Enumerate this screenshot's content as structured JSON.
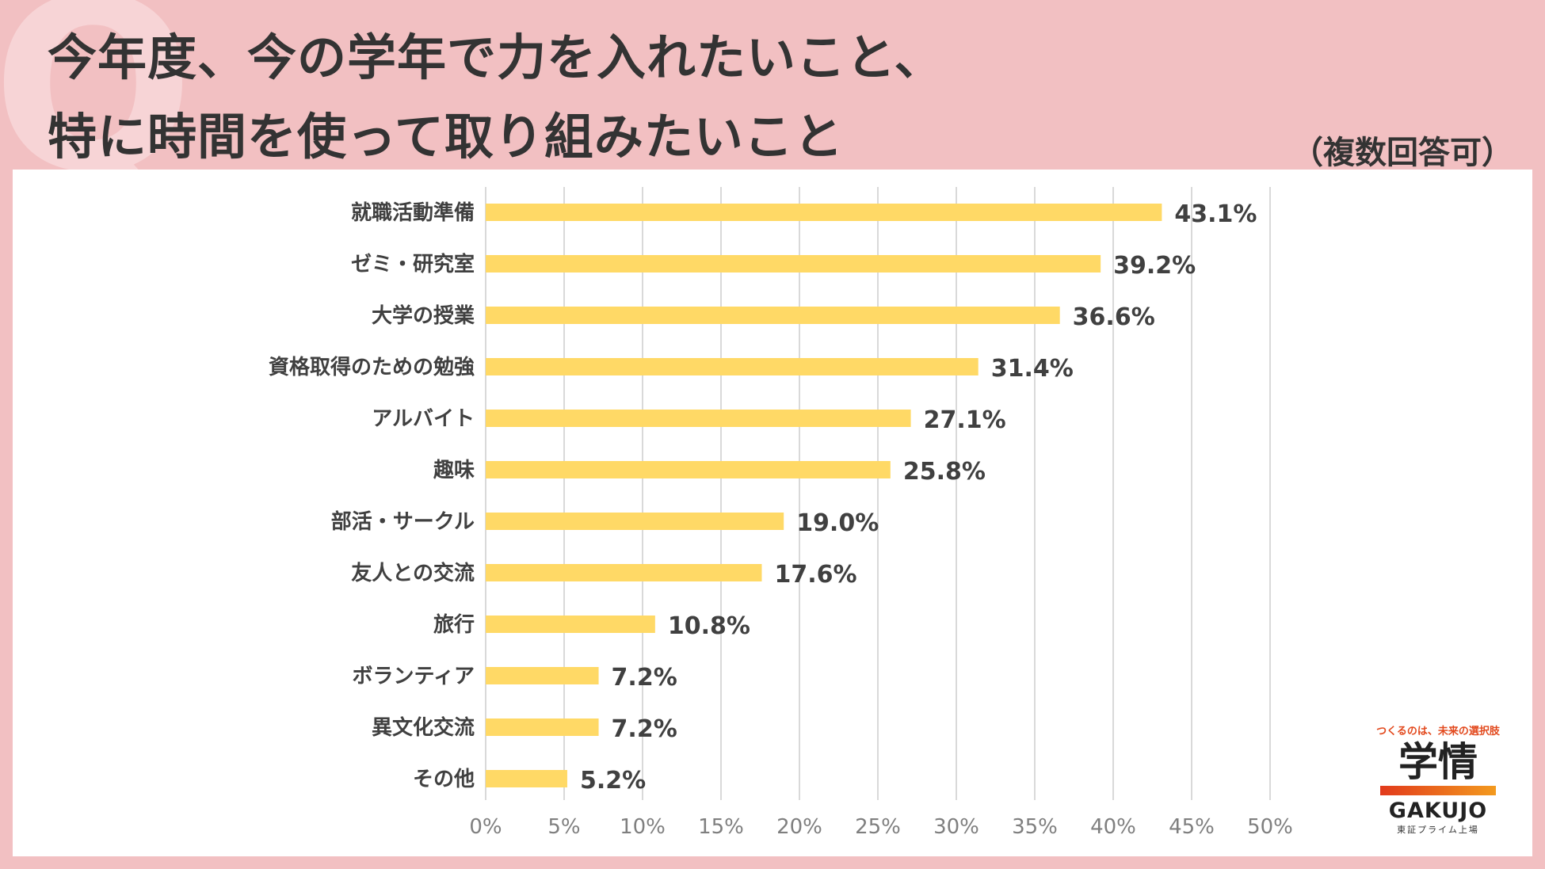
{
  "header": {
    "title_line1": "今年度、今の学年で力を入れたいこと、",
    "title_line2": "特に時間を使って取り組みたいこと",
    "note": "（複数回答可）"
  },
  "chart_data": {
    "type": "bar",
    "orientation": "horizontal",
    "title": "今年度、今の学年で力を入れたいこと、特に時間を使って取り組みたいこと",
    "categories": [
      "就職活動準備",
      "ゼミ・研究室",
      "大学の授業",
      "資格取得のための勉強",
      "アルバイト",
      "趣味",
      "部活・サークル",
      "友人との交流",
      "旅行",
      "ボランティア",
      "異文化交流",
      "その他"
    ],
    "values": [
      43.1,
      39.2,
      36.6,
      31.4,
      27.1,
      25.8,
      19.0,
      17.6,
      10.8,
      7.2,
      7.2,
      5.2
    ],
    "value_labels": [
      "43.1%",
      "39.2%",
      "36.6%",
      "31.4%",
      "27.1%",
      "25.8%",
      "19.0%",
      "17.6%",
      "10.8%",
      "7.2%",
      "7.2%",
      "5.2%"
    ],
    "xlim": [
      0,
      50
    ],
    "xticks": [
      0,
      5,
      10,
      15,
      20,
      25,
      30,
      35,
      40,
      45,
      50
    ],
    "xtick_labels": [
      "0%",
      "5%",
      "10%",
      "15%",
      "20%",
      "25%",
      "30%",
      "35%",
      "40%",
      "45%",
      "50%"
    ],
    "grid": true,
    "bar_color": "#FFD966",
    "grid_color": "#D9D9D9",
    "xlabel": "",
    "ylabel": ""
  },
  "logo": {
    "tagline": "つくるのは、未来の選択肢",
    "mark": "学情",
    "name": "GAKUJO",
    "sub": "東証プライム上場"
  }
}
